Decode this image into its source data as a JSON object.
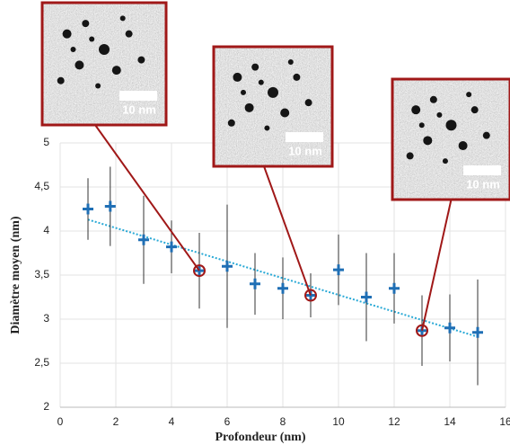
{
  "chart_data": {
    "type": "scatter",
    "xlabel": "Profondeur (nm)",
    "ylabel": "Diamètre moyen (nm)",
    "xlim": [
      0,
      16
    ],
    "xticks": [
      0,
      2,
      4,
      6,
      8,
      10,
      12,
      14,
      16
    ],
    "ylim": [
      2,
      5
    ],
    "yticks": [
      2,
      {
        "value": 2.5,
        "label": "2,5"
      },
      3,
      {
        "value": 3.5,
        "label": "3,5"
      },
      4,
      {
        "value": 4.5,
        "label": "4,5"
      },
      5
    ],
    "grid": true,
    "series": [
      {
        "color": "#1f6fb5",
        "x": [
          1,
          1.8,
          3,
          4,
          5,
          6,
          7,
          8,
          9,
          10,
          11,
          12,
          13,
          14,
          15
        ],
        "values": [
          4.25,
          4.28,
          3.9,
          3.82,
          3.55,
          3.6,
          3.4,
          3.35,
          3.27,
          3.56,
          3.25,
          3.35,
          2.87,
          2.9,
          2.85
        ],
        "errors": [
          0.35,
          0.45,
          0.5,
          0.3,
          0.43,
          0.7,
          0.35,
          0.35,
          0.25,
          0.4,
          0.5,
          0.4,
          0.4,
          0.38,
          0.6
        ]
      }
    ],
    "trend": {
      "color": "#29a9d6",
      "x": [
        1,
        15
      ],
      "values": [
        4.13,
        2.8
      ]
    },
    "highlight": {
      "color": "#a01818",
      "x": [
        5,
        9,
        13
      ]
    },
    "insets": [
      {
        "scale_label": "10 nm"
      },
      {
        "scale_label": "10 nm"
      },
      {
        "scale_label": "10 nm"
      }
    ]
  }
}
